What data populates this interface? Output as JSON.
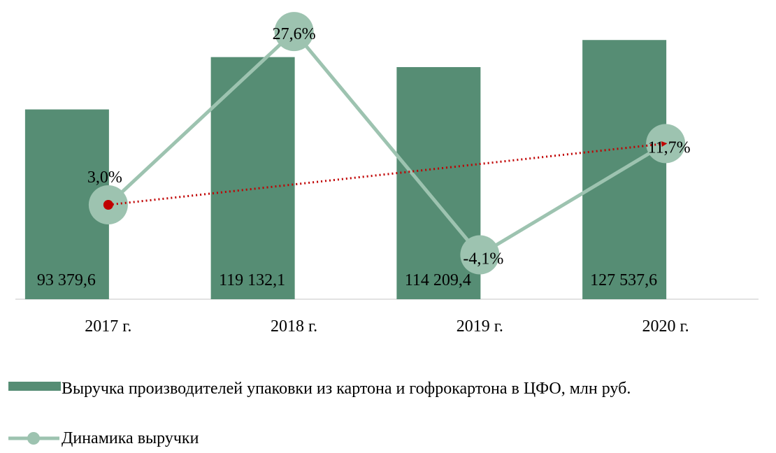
{
  "chart_data": {
    "type": "bar-line",
    "categories": [
      "2017 г.",
      "2018 г.",
      "2019 г.",
      "2020 г."
    ],
    "series": [
      {
        "name": "Выручка производителей упаковки из картона и гофрокартона в ЦФО, млн руб.",
        "type": "bar",
        "color": "#568d74",
        "values": [
          93379.6,
          119132.1,
          114209.4,
          127537.6
        ],
        "value_labels": [
          "93 379,6",
          "119 132,1",
          "114 209,4",
          "127 537,6"
        ]
      },
      {
        "name": "Динамика выручки",
        "type": "line",
        "axis": "y2",
        "color": "#9dc3b0",
        "values": [
          3.0,
          27.6,
          -4.1,
          11.7
        ],
        "value_labels": [
          "3,0%",
          "27,6%",
          "-4,1%",
          "11,7%"
        ]
      }
    ],
    "ylim": [
      0,
      140000
    ],
    "y2lim": [
      -10.4,
      30
    ],
    "trend_arrow_color": "#c00000",
    "legend": "bottom"
  }
}
